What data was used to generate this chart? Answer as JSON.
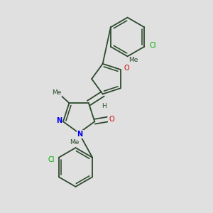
{
  "background_color": "#e0e0e0",
  "bond_color": "#2d4a2d",
  "nitrogen_color": "#0000ee",
  "oxygen_color": "#cc0000",
  "chlorine_color": "#00aa00",
  "carbon_color": "#2d4a2d",
  "figsize": [
    3.0,
    3.0
  ],
  "dpi": 100,
  "xlim": [
    0.15,
    0.85
  ],
  "ylim": [
    0.02,
    0.98
  ]
}
